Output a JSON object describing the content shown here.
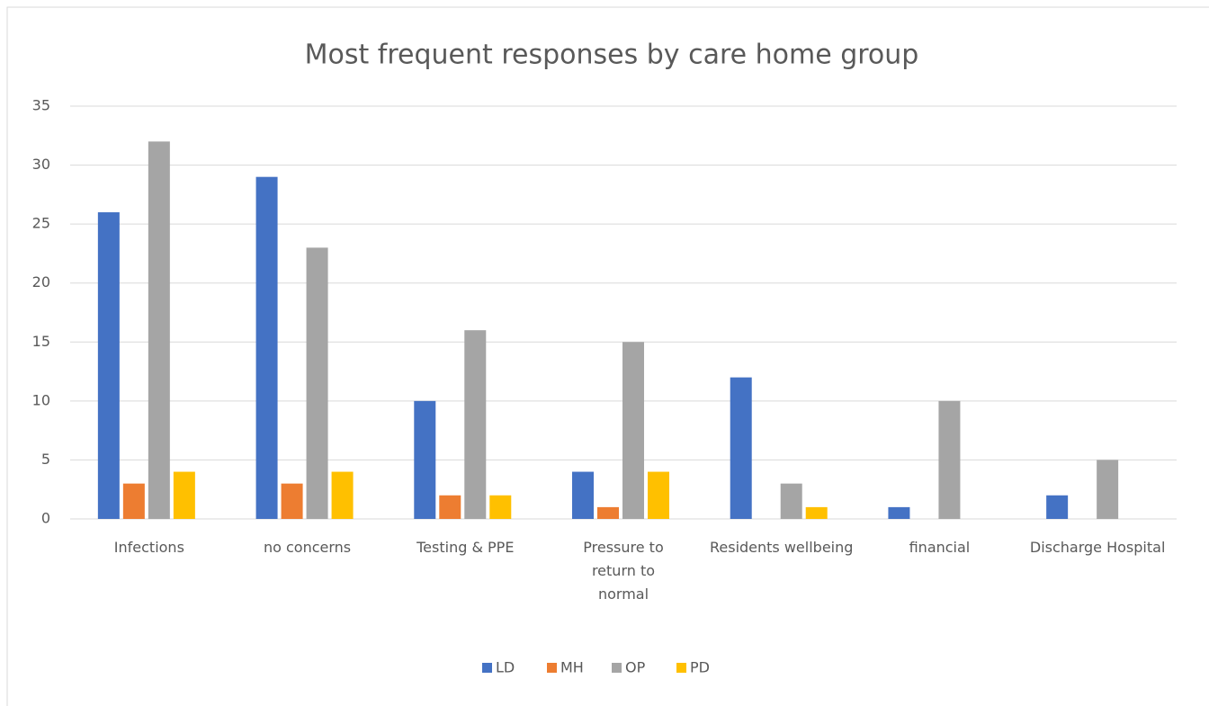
{
  "chart_data": {
    "type": "bar",
    "title": "Most frequent responses by care home group",
    "categories": [
      "Infections",
      "no concerns",
      "Testing & PPE",
      "Pressure to return to normal",
      "Residents wellbeing",
      "financial",
      "Discharge Hospital"
    ],
    "series": [
      {
        "name": "LD",
        "color": "#4472c4",
        "values": [
          26,
          29,
          10,
          4,
          12,
          1,
          2
        ]
      },
      {
        "name": "MH",
        "color": "#ed7d31",
        "values": [
          3,
          3,
          2,
          1,
          0,
          0,
          0
        ]
      },
      {
        "name": "OP",
        "color": "#a5a5a5",
        "values": [
          32,
          23,
          16,
          15,
          3,
          10,
          5
        ]
      },
      {
        "name": "PD",
        "color": "#ffc000",
        "values": [
          4,
          4,
          2,
          4,
          1,
          0,
          0
        ]
      }
    ],
    "ylim": [
      0,
      35
    ],
    "yticks": [
      0,
      5,
      10,
      15,
      20,
      25,
      30,
      35
    ],
    "grid": true,
    "legend": "bottom"
  }
}
